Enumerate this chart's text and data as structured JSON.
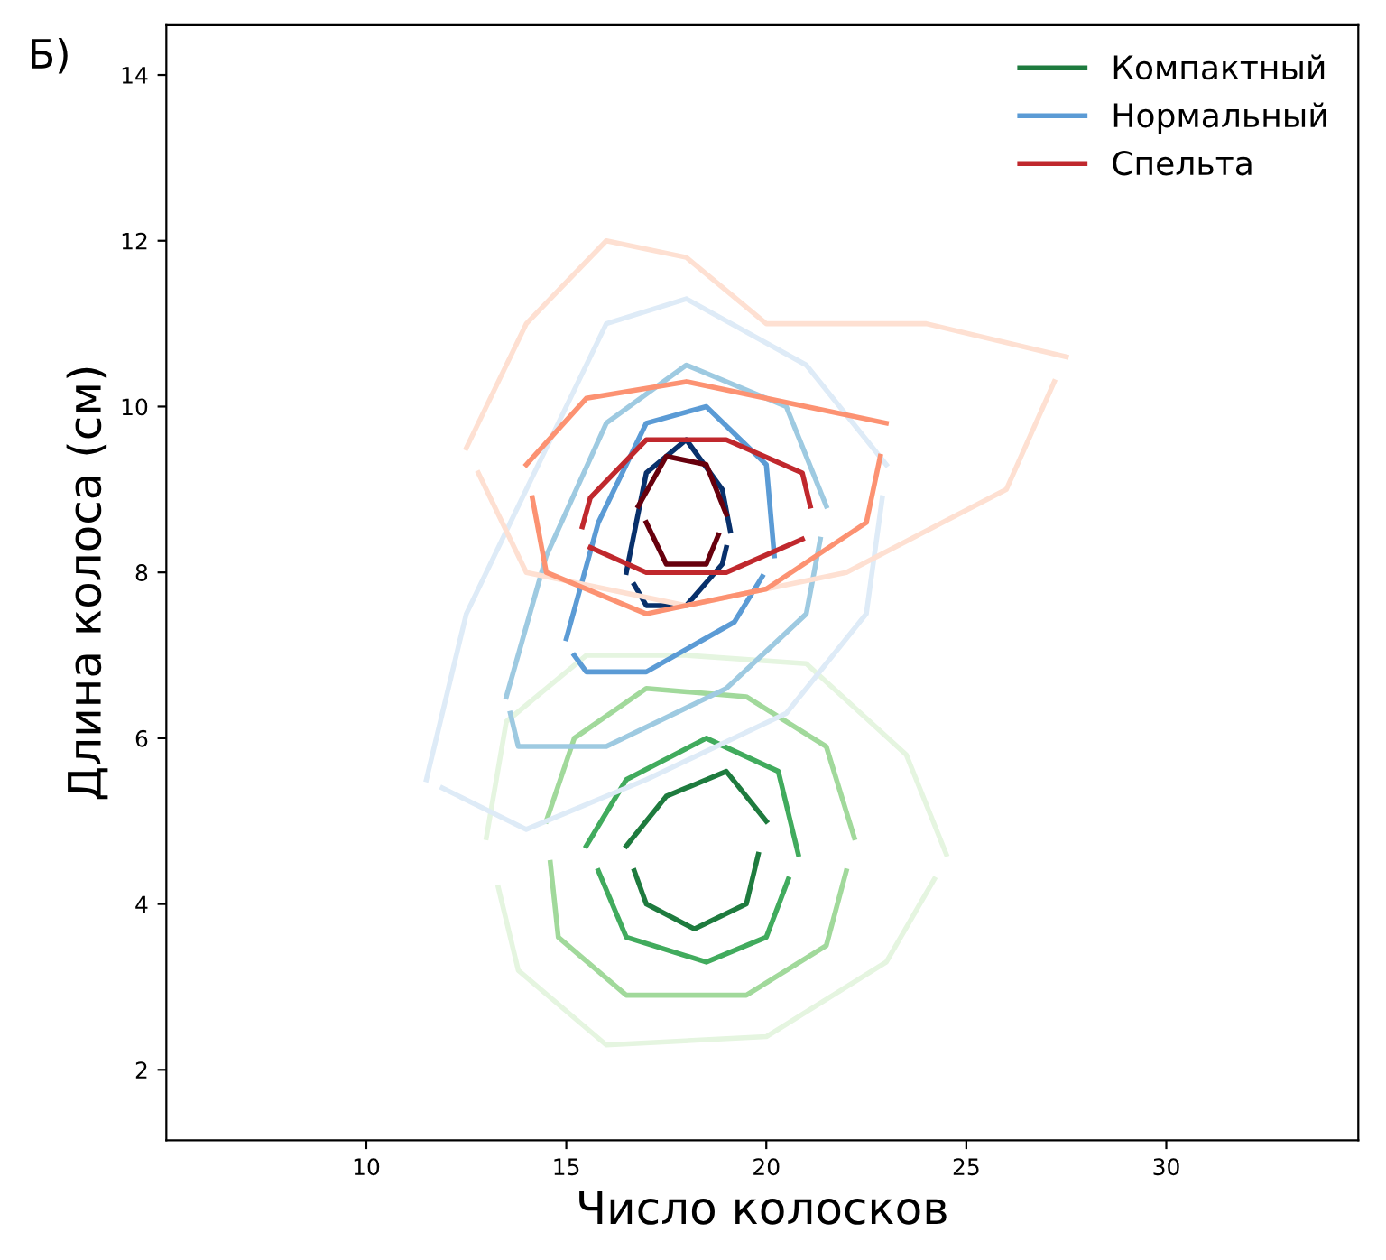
{
  "chart_data": {
    "type": "line",
    "xlabel": "Число колосков",
    "ylabel": "Длина колоса (см)",
    "annotations": [
      "Б)"
    ],
    "xlim": [
      5,
      34.8
    ],
    "ylim": [
      1.15,
      14.6
    ],
    "xticks": [
      10,
      15,
      20,
      25,
      30
    ],
    "yticks": [
      2,
      4,
      6,
      8,
      10,
      12,
      14
    ],
    "grid": false,
    "legend": "top right",
    "marker": "none",
    "line_style": "solid",
    "series": [
      {
        "color": "#e5f5e0",
        "x": [
          13,
          13.5,
          15.5,
          18,
          21,
          23.5,
          24.5
        ],
        "values": [
          4.8,
          6.2,
          7.0,
          7.0,
          6.9,
          5.8,
          4.6
        ]
      },
      {
        "color": "#e5f5e0",
        "x": [
          13.3,
          13.8,
          16,
          20,
          23,
          24.2
        ],
        "values": [
          4.2,
          3.2,
          2.3,
          2.4,
          3.3,
          4.3
        ]
      },
      {
        "color": "#a1d99b",
        "x": [
          14.5,
          15.2,
          17,
          19.5,
          21.5,
          22.2
        ],
        "values": [
          5.0,
          6.0,
          6.6,
          6.5,
          5.9,
          4.8
        ]
      },
      {
        "color": "#a1d99b",
        "x": [
          14.6,
          14.8,
          16.5,
          19.5,
          21.5,
          22.0
        ],
        "values": [
          4.5,
          3.6,
          2.9,
          2.9,
          3.5,
          4.4
        ]
      },
      {
        "color": "#41ab5d",
        "x": [
          15.5,
          16.5,
          18.5,
          20.3,
          20.8
        ],
        "values": [
          4.7,
          5.5,
          6.0,
          5.6,
          4.6
        ]
      },
      {
        "color": "#41ab5d",
        "x": [
          15.8,
          16.5,
          18.5,
          20,
          20.55
        ],
        "values": [
          4.4,
          3.6,
          3.3,
          3.6,
          4.3
        ]
      },
      {
        "name": "Компактный",
        "color": "#1e7b3e",
        "x": [
          16.5,
          17.5,
          19,
          20
        ],
        "values": [
          4.7,
          5.3,
          5.6,
          5.0
        ]
      },
      {
        "color": "#1e7b3e",
        "x": [
          16.7,
          17,
          18.2,
          19.5,
          19.8
        ],
        "values": [
          4.4,
          4.0,
          3.7,
          4.0,
          4.6
        ]
      },
      {
        "color": "#deebf7",
        "x": [
          11.5,
          12.5,
          14.5,
          16,
          18,
          21,
          23
        ],
        "values": [
          5.5,
          7.5,
          9.5,
          11.0,
          11.3,
          10.5,
          9.3
        ]
      },
      {
        "color": "#deebf7",
        "x": [
          11.9,
          14,
          17,
          20.5,
          22.5,
          22.9
        ],
        "values": [
          5.4,
          4.9,
          5.5,
          6.3,
          7.5,
          8.9
        ]
      },
      {
        "color": "#9ecae1",
        "x": [
          13.5,
          14.5,
          16,
          18,
          20.5,
          21.5
        ],
        "values": [
          6.5,
          8.2,
          9.8,
          10.5,
          10.0,
          8.8
        ]
      },
      {
        "color": "#9ecae1",
        "x": [
          13.6,
          13.8,
          16,
          19,
          21,
          21.35
        ],
        "values": [
          6.3,
          5.9,
          5.9,
          6.6,
          7.5,
          8.4
        ]
      },
      {
        "name": "Нормальный",
        "color": "#5b9bd5",
        "x": [
          15,
          15.8,
          17,
          18.5,
          20,
          20.2
        ],
        "values": [
          7.2,
          8.6,
          9.8,
          10.0,
          9.3,
          8.2
        ]
      },
      {
        "color": "#5b9bd5",
        "x": [
          15.2,
          15.5,
          17,
          19.2,
          19.9
        ],
        "values": [
          7.0,
          6.8,
          6.8,
          7.4,
          7.95
        ]
      },
      {
        "color": "#08306b",
        "x": [
          16.5,
          17,
          18,
          18.9,
          19.1
        ],
        "values": [
          8.0,
          9.2,
          9.6,
          9.0,
          8.5
        ]
      },
      {
        "color": "#08306b",
        "x": [
          16.7,
          17,
          18,
          18.9,
          19.0
        ],
        "values": [
          7.85,
          7.6,
          7.6,
          8.1,
          8.3
        ]
      },
      {
        "color": "#fee0d2",
        "x": [
          12.5,
          14,
          16,
          18,
          20,
          24,
          27.5
        ],
        "values": [
          9.5,
          11.0,
          12.0,
          11.8,
          11.0,
          11.0,
          10.6
        ]
      },
      {
        "color": "#fee0d2",
        "x": [
          12.8,
          14,
          18,
          22,
          26,
          27.2
        ],
        "values": [
          9.2,
          8.0,
          7.6,
          8.0,
          9.0,
          10.3
        ]
      },
      {
        "color": "#fc9272",
        "x": [
          14,
          15.5,
          18,
          21,
          23
        ],
        "values": [
          9.3,
          10.1,
          10.3,
          10.0,
          9.8
        ]
      },
      {
        "color": "#fc9272",
        "x": [
          14.15,
          14.5,
          17,
          20,
          22.5,
          22.85
        ],
        "values": [
          8.9,
          8.0,
          7.5,
          7.8,
          8.6,
          9.4
        ]
      },
      {
        "name": "Спельта",
        "color": "#c0282d",
        "x": [
          15.4,
          15.6,
          17,
          19,
          20.9,
          21.1
        ],
        "values": [
          8.55,
          8.9,
          9.6,
          9.6,
          9.2,
          8.8
        ]
      },
      {
        "color": "#c0282d",
        "x": [
          15.6,
          17,
          19,
          20.9
        ],
        "values": [
          8.3,
          8.0,
          8.0,
          8.4
        ]
      },
      {
        "color": "#67000d",
        "x": [
          16.8,
          17.5,
          18.5,
          19
        ],
        "values": [
          8.8,
          9.4,
          9.3,
          8.7
        ]
      },
      {
        "color": "#67000d",
        "x": [
          17.0,
          17.5,
          18.5,
          18.8
        ],
        "values": [
          8.6,
          8.1,
          8.1,
          8.45
        ]
      }
    ]
  }
}
